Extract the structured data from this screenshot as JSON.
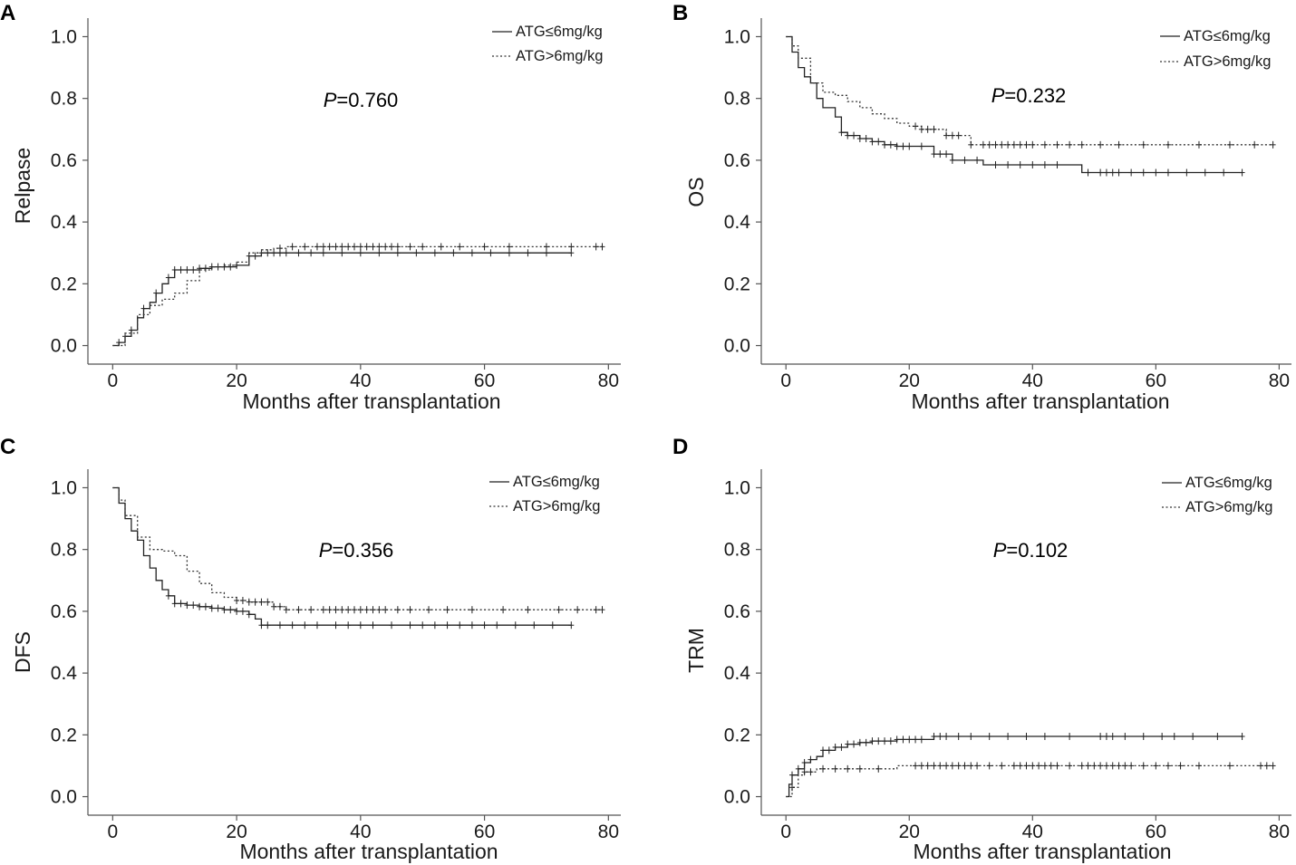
{
  "figure": {
    "x_tick_labels": [
      "0",
      "20",
      "40",
      "60",
      "80"
    ],
    "y_tick_labels": [
      "0.0",
      "0.2",
      "0.4",
      "0.6",
      "0.8",
      "1.0"
    ],
    "p_prefix": "P"
  },
  "colors": {
    "line": "#222222",
    "axis": "#555555",
    "text": "#1a1a1a"
  },
  "chart_data": [
    {
      "type": "line",
      "panel": "A",
      "xlabel": "Months after transplantation",
      "ylabel": "Relpase",
      "xlim": [
        -4,
        82
      ],
      "ylim": [
        -0.06,
        1.06
      ],
      "xticks": [
        0,
        20,
        40,
        60,
        80
      ],
      "yticks": [
        0.0,
        0.2,
        0.4,
        0.6,
        0.8,
        1.0
      ],
      "p_value": "=0.760",
      "legend_position": "top-right",
      "series": [
        {
          "name": "ATG≤6mg/kg",
          "style": "solid",
          "x": [
            0,
            1,
            2,
            3,
            4,
            5,
            6,
            7,
            8,
            9,
            10,
            12,
            14,
            16,
            18,
            20,
            22,
            24,
            26,
            30,
            74
          ],
          "y": [
            0.0,
            0.01,
            0.03,
            0.05,
            0.09,
            0.12,
            0.14,
            0.17,
            0.2,
            0.22,
            0.245,
            0.245,
            0.25,
            0.255,
            0.255,
            0.26,
            0.29,
            0.3,
            0.3,
            0.3,
            0.3
          ],
          "censored_x": [
            1,
            2,
            3,
            5,
            7,
            9,
            10,
            11,
            12,
            13,
            14,
            15,
            16,
            17,
            18,
            19,
            20,
            22,
            23,
            24,
            25,
            26,
            27,
            28,
            30,
            32,
            34,
            37,
            40,
            43,
            46,
            49,
            52,
            55,
            58,
            61,
            64,
            67,
            70,
            74
          ]
        },
        {
          "name": "ATG>6mg/kg",
          "style": "dotted",
          "x": [
            0,
            2,
            4,
            6,
            8,
            10,
            12,
            14,
            16,
            18,
            20,
            22,
            24,
            26,
            28,
            79
          ],
          "y": [
            0.0,
            0.04,
            0.1,
            0.13,
            0.15,
            0.17,
            0.21,
            0.245,
            0.255,
            0.26,
            0.27,
            0.3,
            0.31,
            0.315,
            0.32,
            0.32
          ],
          "censored_x": [
            27,
            29,
            31,
            33,
            34,
            35,
            36,
            37,
            38,
            39,
            40,
            41,
            42,
            43,
            44,
            45,
            46,
            48,
            50,
            53,
            56,
            60,
            64,
            70,
            74,
            78,
            79
          ]
        }
      ]
    },
    {
      "type": "line",
      "panel": "B",
      "xlabel": "Months after transplantation",
      "ylabel": "OS",
      "xlim": [
        -4,
        82
      ],
      "ylim": [
        -0.06,
        1.06
      ],
      "xticks": [
        0,
        20,
        40,
        60,
        80
      ],
      "yticks": [
        0.0,
        0.2,
        0.4,
        0.6,
        0.8,
        1.0
      ],
      "p_value": "=0.232",
      "legend_position": "top-right",
      "series": [
        {
          "name": "ATG≤6mg/kg",
          "style": "solid",
          "x": [
            0,
            1,
            2,
            3,
            4,
            5,
            6,
            8,
            9,
            10,
            12,
            14,
            16,
            18,
            24,
            27,
            32,
            48,
            74
          ],
          "y": [
            1.0,
            0.95,
            0.9,
            0.87,
            0.85,
            0.8,
            0.77,
            0.74,
            0.69,
            0.68,
            0.67,
            0.66,
            0.65,
            0.645,
            0.62,
            0.6,
            0.585,
            0.56,
            0.56
          ],
          "censored_x": [
            9,
            10,
            11,
            12,
            13,
            14,
            15,
            16,
            17,
            18,
            19,
            20,
            22,
            24,
            25,
            26,
            27,
            29,
            31,
            34,
            36,
            38,
            40,
            42,
            44,
            49,
            51,
            52,
            53,
            54,
            56,
            58,
            60,
            62,
            65,
            68,
            71,
            74
          ]
        },
        {
          "name": "ATG>6mg/kg",
          "style": "dotted",
          "x": [
            0,
            1,
            2,
            4,
            6,
            8,
            10,
            12,
            14,
            16,
            18,
            20,
            22,
            26,
            30,
            79
          ],
          "y": [
            1.0,
            0.97,
            0.93,
            0.85,
            0.82,
            0.81,
            0.79,
            0.77,
            0.75,
            0.735,
            0.72,
            0.71,
            0.7,
            0.68,
            0.65,
            0.65
          ],
          "censored_x": [
            21,
            22,
            23,
            24,
            26,
            27,
            28,
            30,
            32,
            33,
            34,
            35,
            36,
            37,
            38,
            39,
            40,
            42,
            44,
            46,
            48,
            51,
            54,
            58,
            62,
            67,
            72,
            76,
            79
          ]
        }
      ]
    },
    {
      "type": "line",
      "panel": "C",
      "xlabel": "Months after transplantation",
      "ylabel": "DFS",
      "xlim": [
        -4,
        82
      ],
      "ylim": [
        -0.06,
        1.06
      ],
      "xticks": [
        0,
        20,
        40,
        60,
        80
      ],
      "yticks": [
        0.0,
        0.2,
        0.4,
        0.6,
        0.8,
        1.0
      ],
      "p_value": "=0.356",
      "legend_position": "top-right",
      "series": [
        {
          "name": "ATG≤6mg/kg",
          "style": "solid",
          "x": [
            0,
            1,
            2,
            3,
            4,
            5,
            6,
            7,
            8,
            9,
            10,
            12,
            14,
            16,
            18,
            20,
            22,
            23,
            24,
            74
          ],
          "y": [
            1.0,
            0.95,
            0.9,
            0.86,
            0.83,
            0.78,
            0.74,
            0.7,
            0.67,
            0.65,
            0.625,
            0.62,
            0.615,
            0.61,
            0.605,
            0.6,
            0.59,
            0.575,
            0.555,
            0.555
          ],
          "censored_x": [
            9,
            10,
            11,
            12,
            13,
            14,
            15,
            16,
            17,
            18,
            19,
            20,
            21,
            22,
            24,
            25,
            27,
            29,
            31,
            33,
            36,
            38,
            40,
            42,
            45,
            48,
            50,
            52,
            54,
            56,
            58,
            60,
            62,
            65,
            68,
            71,
            74
          ]
        },
        {
          "name": "ATG>6mg/kg",
          "style": "dotted",
          "x": [
            0,
            1,
            2,
            4,
            6,
            8,
            10,
            12,
            14,
            16,
            18,
            20,
            22,
            26,
            28,
            79
          ],
          "y": [
            1.0,
            0.96,
            0.91,
            0.84,
            0.8,
            0.795,
            0.78,
            0.73,
            0.69,
            0.66,
            0.645,
            0.635,
            0.63,
            0.615,
            0.605,
            0.605
          ],
          "censored_x": [
            20,
            21,
            22,
            23,
            24,
            25,
            26,
            27,
            28,
            30,
            32,
            34,
            35,
            36,
            37,
            38,
            39,
            40,
            41,
            42,
            43,
            44,
            46,
            48,
            51,
            54,
            58,
            63,
            67,
            72,
            75,
            78,
            79
          ]
        }
      ]
    },
    {
      "type": "line",
      "panel": "D",
      "xlabel": "Months after transplantation",
      "ylabel": "TRM",
      "xlim": [
        -4,
        82
      ],
      "ylim": [
        -0.06,
        1.06
      ],
      "xticks": [
        0,
        20,
        40,
        60,
        80
      ],
      "yticks": [
        0.0,
        0.2,
        0.4,
        0.6,
        0.8,
        1.0
      ],
      "p_value": "=0.102",
      "legend_position": "top-right",
      "series": [
        {
          "name": "ATG≤6mg/kg",
          "style": "solid",
          "x": [
            0,
            0.5,
            1,
            2,
            3,
            4,
            5,
            6,
            8,
            10,
            12,
            14,
            18,
            24,
            74
          ],
          "y": [
            0.0,
            0.04,
            0.07,
            0.09,
            0.11,
            0.12,
            0.13,
            0.15,
            0.16,
            0.17,
            0.175,
            0.18,
            0.185,
            0.195,
            0.195
          ],
          "censored_x": [
            1,
            2,
            3,
            4,
            6,
            7,
            8,
            9,
            10,
            11,
            12,
            13,
            14,
            15,
            16,
            17,
            18,
            19,
            20,
            21,
            22,
            24,
            25,
            26,
            28,
            30,
            33,
            36,
            39,
            42,
            46,
            51,
            52,
            53,
            55,
            58,
            61,
            63,
            66,
            70,
            74
          ]
        },
        {
          "name": "ATG>6mg/kg",
          "style": "dotted",
          "x": [
            0,
            1,
            2,
            3,
            5,
            12,
            18,
            20,
            79
          ],
          "y": [
            0.0,
            0.03,
            0.07,
            0.08,
            0.09,
            0.09,
            0.1,
            0.1,
            0.1
          ],
          "censored_x": [
            1,
            3,
            4,
            6,
            8,
            10,
            12,
            15,
            21,
            22,
            23,
            24,
            25,
            26,
            27,
            28,
            29,
            30,
            31,
            33,
            35,
            37,
            38,
            39,
            40,
            41,
            42,
            43,
            44,
            46,
            48,
            49,
            50,
            51,
            52,
            53,
            54,
            55,
            56,
            58,
            60,
            62,
            64,
            67,
            72,
            77,
            78,
            79
          ]
        }
      ]
    }
  ]
}
